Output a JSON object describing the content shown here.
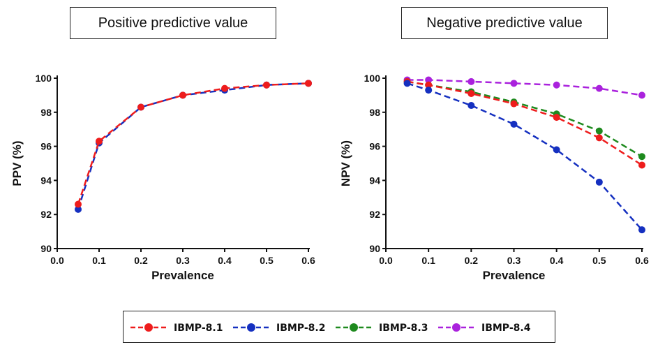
{
  "charts": {
    "left_title": "Positive predictive value",
    "right_title": "Negative predictive value"
  },
  "chart_data": [
    {
      "type": "line",
      "title": "Positive predictive value",
      "xlabel": "Prevalence",
      "ylabel": "PPV (%)",
      "xlim": [
        0.0,
        0.6
      ],
      "ylim": [
        90,
        100
      ],
      "xticks": [
        "0.0",
        "0.1",
        "0.2",
        "0.3",
        "0.4",
        "0.5",
        "0.6"
      ],
      "yticks": [
        "90",
        "92",
        "94",
        "96",
        "98",
        "100"
      ],
      "grid": false,
      "x": [
        0.05,
        0.1,
        0.2,
        0.3,
        0.4,
        0.5,
        0.6
      ],
      "series": [
        {
          "name": "IBMP-8.2",
          "color": "#1530c0",
          "values": [
            92.3,
            96.2,
            98.3,
            99.0,
            99.3,
            99.6,
            99.7
          ]
        },
        {
          "name": "IBMP-8.1",
          "color": "#ee1c1c",
          "values": [
            92.6,
            96.3,
            98.3,
            99.0,
            99.4,
            99.6,
            99.7
          ]
        }
      ]
    },
    {
      "type": "line",
      "title": "Negative predictive value",
      "xlabel": "Prevalence",
      "ylabel": "NPV (%)",
      "xlim": [
        0.0,
        0.6
      ],
      "ylim": [
        90,
        100
      ],
      "xticks": [
        "0.0",
        "0.1",
        "0.2",
        "0.3",
        "0.4",
        "0.5",
        "0.6"
      ],
      "yticks": [
        "90",
        "92",
        "94",
        "96",
        "98",
        "100"
      ],
      "grid": false,
      "x": [
        0.05,
        0.1,
        0.2,
        0.3,
        0.4,
        0.5,
        0.6
      ],
      "series": [
        {
          "name": "IBMP-8.4",
          "color": "#aa22dd",
          "values": [
            99.9,
            99.9,
            99.8,
            99.7,
            99.6,
            99.4,
            99.0
          ]
        },
        {
          "name": "IBMP-8.3",
          "color": "#1e8a1e",
          "values": [
            99.8,
            99.6,
            99.2,
            98.6,
            97.9,
            96.9,
            95.4
          ]
        },
        {
          "name": "IBMP-8.1",
          "color": "#ee1c1c",
          "values": [
            99.8,
            99.6,
            99.1,
            98.5,
            97.7,
            96.5,
            94.9
          ]
        },
        {
          "name": "IBMP-8.2",
          "color": "#1530c0",
          "values": [
            99.7,
            99.3,
            98.4,
            97.3,
            95.8,
            93.9,
            91.1
          ]
        }
      ]
    }
  ],
  "legend": {
    "placement": "bottom",
    "items": [
      {
        "label": "IBMP-8.1",
        "color": "#ee1c1c"
      },
      {
        "label": "IBMP-8.2",
        "color": "#1530c0"
      },
      {
        "label": "IBMP-8.3",
        "color": "#1e8a1e"
      },
      {
        "label": "IBMP-8.4",
        "color": "#aa22dd"
      }
    ]
  }
}
